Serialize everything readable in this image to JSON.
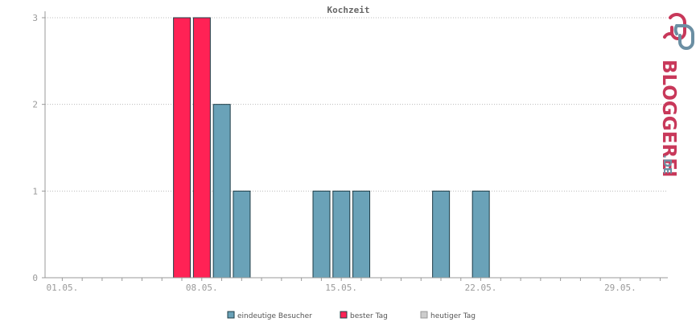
{
  "chart_data": {
    "type": "bar",
    "title": "Kochzeit",
    "ylim": [
      0,
      3
    ],
    "yticks": [
      0,
      1,
      2,
      3
    ],
    "xtick_labels": [
      "01.05.",
      "08.05.",
      "15.05.",
      "22.05.",
      "29.05."
    ],
    "grid": true,
    "legend_placement": "bottom",
    "days": [
      "01.05.",
      "02.05.",
      "03.05.",
      "04.05.",
      "05.05.",
      "06.05.",
      "07.05.",
      "08.05.",
      "09.05.",
      "10.05.",
      "11.05.",
      "12.05.",
      "13.05.",
      "14.05.",
      "15.05.",
      "16.05.",
      "17.05.",
      "18.05.",
      "19.05.",
      "20.05.",
      "21.05.",
      "22.05.",
      "23.05.",
      "24.05.",
      "25.05.",
      "26.05.",
      "27.05.",
      "28.05.",
      "29.05.",
      "30.05.",
      "31.05."
    ],
    "series": [
      {
        "name": "eindeutige Besucher",
        "color": "#6aa2b8",
        "values": [
          0,
          0,
          0,
          0,
          0,
          0,
          0,
          0,
          2,
          1,
          0,
          0,
          0,
          1,
          1,
          1,
          0,
          0,
          0,
          1,
          0,
          1,
          0,
          0,
          0,
          0,
          0,
          0,
          0,
          0,
          0
        ]
      },
      {
        "name": "bester Tag",
        "color": "#ff2255",
        "values": [
          0,
          0,
          0,
          0,
          0,
          0,
          3,
          3,
          0,
          0,
          0,
          0,
          0,
          0,
          0,
          0,
          0,
          0,
          0,
          0,
          0,
          0,
          0,
          0,
          0,
          0,
          0,
          0,
          0,
          0,
          0
        ]
      },
      {
        "name": "heutiger Tag",
        "color": "#cccccc",
        "values": [
          0,
          0,
          0,
          0,
          0,
          0,
          0,
          0,
          0,
          0,
          0,
          0,
          0,
          0,
          0,
          0,
          0,
          0,
          0,
          0,
          0,
          0,
          0,
          0,
          0,
          0,
          0,
          0,
          0,
          0,
          0
        ]
      }
    ]
  },
  "brand": {
    "logo_text": "BLOGGEREI",
    "logo_suffix": ".DE",
    "pink": "#c8385a",
    "blue": "#6b8fa3"
  }
}
